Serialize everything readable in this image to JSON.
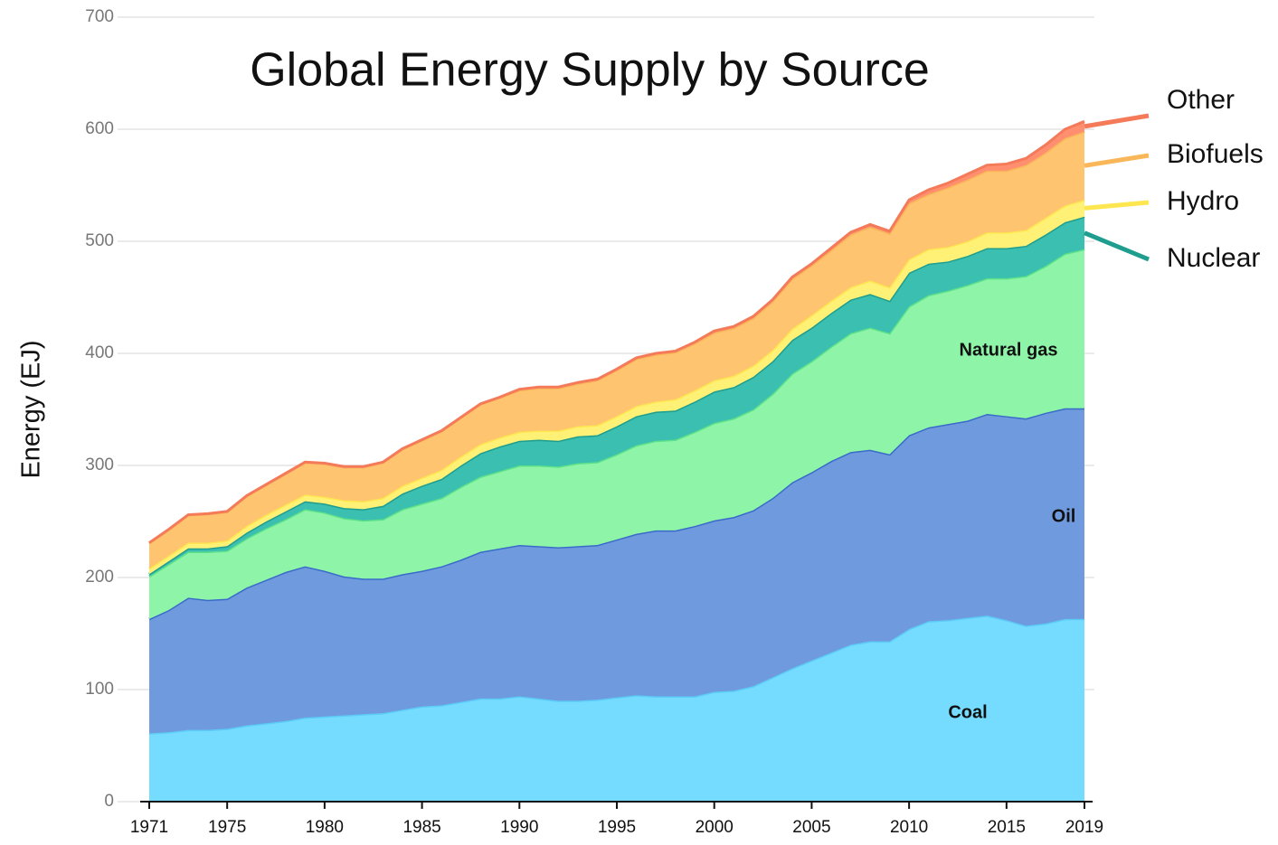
{
  "chart_data": {
    "type": "stacked_area",
    "title": "Global Energy Supply by Source",
    "y_label": "Energy (EJ)",
    "x": [
      1971,
      1972,
      1973,
      1974,
      1975,
      1976,
      1977,
      1978,
      1979,
      1980,
      1981,
      1982,
      1983,
      1984,
      1985,
      1986,
      1987,
      1988,
      1989,
      1990,
      1991,
      1992,
      1993,
      1994,
      1995,
      1996,
      1997,
      1998,
      1999,
      2000,
      2001,
      2002,
      2003,
      2004,
      2005,
      2006,
      2007,
      2008,
      2009,
      2010,
      2011,
      2012,
      2013,
      2014,
      2015,
      2016,
      2017,
      2018,
      2019
    ],
    "xlim": [
      1971,
      2019
    ],
    "xticks": [
      1971,
      1975,
      1980,
      1985,
      1990,
      1995,
      2000,
      2005,
      2010,
      2015,
      2019
    ],
    "ylim": [
      0,
      700
    ],
    "yticks": [
      0,
      100,
      200,
      300,
      400,
      500,
      600,
      700
    ],
    "grid": true,
    "series": [
      {
        "name": "Coal",
        "color": "#76dcff",
        "line": "#5ccbf7",
        "values": [
          61,
          62,
          64,
          64,
          65,
          68,
          70,
          72,
          75,
          76,
          77,
          78,
          79,
          82,
          85,
          86,
          89,
          92,
          92,
          94,
          92,
          90,
          90,
          91,
          93,
          95,
          94,
          94,
          94,
          98,
          99,
          103,
          111,
          119,
          126,
          133,
          140,
          143,
          143,
          154,
          161,
          162,
          164,
          166,
          162,
          157,
          159,
          163,
          163
        ]
      },
      {
        "name": "Oil",
        "color": "#6f9ade",
        "line": "#3a6bc9",
        "values": [
          102,
          109,
          118,
          116,
          116,
          123,
          128,
          133,
          135,
          130,
          124,
          121,
          120,
          121,
          121,
          124,
          127,
          131,
          134,
          135,
          136,
          137,
          138,
          138,
          141,
          144,
          148,
          148,
          152,
          153,
          155,
          157,
          160,
          166,
          168,
          171,
          172,
          171,
          167,
          173,
          173,
          175,
          176,
          180,
          182,
          185,
          188,
          188,
          188
        ]
      },
      {
        "name": "Natural gas",
        "color": "#8ef5a8",
        "line": "#5de08a",
        "values": [
          38,
          41,
          41,
          43,
          43,
          44,
          46,
          47,
          51,
          52,
          52,
          52,
          53,
          58,
          60,
          61,
          65,
          67,
          69,
          71,
          72,
          72,
          74,
          74,
          76,
          79,
          80,
          81,
          84,
          87,
          88,
          90,
          93,
          97,
          99,
          102,
          106,
          109,
          108,
          115,
          118,
          119,
          121,
          121,
          123,
          127,
          131,
          138,
          142
        ]
      },
      {
        "name": "Nuclear",
        "color": "#3bbfb0",
        "line": "#1f9d8e",
        "values": [
          2,
          2.5,
          3,
          3,
          4,
          5,
          6,
          7,
          7,
          8,
          9,
          10,
          12,
          14,
          16,
          17,
          19,
          21,
          22,
          22,
          23,
          23,
          24,
          24,
          25,
          26,
          26,
          26,
          27,
          28,
          28,
          29,
          29,
          30,
          30,
          30,
          30,
          30,
          29,
          30,
          28,
          26,
          26,
          27,
          27,
          27,
          28,
          28,
          29
        ]
      },
      {
        "name": "Hydro",
        "color": "#fff176",
        "line": "#fde64f",
        "values": [
          5,
          5,
          5,
          5,
          5,
          6,
          6,
          6,
          6,
          6,
          7,
          7,
          7,
          7,
          7,
          8,
          8,
          8,
          8,
          8,
          8,
          9,
          9,
          9,
          9,
          9,
          9,
          10,
          10,
          10,
          10,
          10,
          10,
          10,
          11,
          11,
          11,
          12,
          12,
          12,
          13,
          13,
          13,
          14,
          14,
          14,
          15,
          15,
          15
        ]
      },
      {
        "name": "Biofuels",
        "color": "#ffc470",
        "line": "#f9b75a",
        "values": [
          22.5,
          23,
          24.5,
          25.5,
          25.5,
          26.5,
          26.5,
          27.5,
          28.5,
          29.5,
          29.5,
          30.5,
          31.5,
          32.5,
          33.5,
          34.5,
          34.5,
          35.5,
          35.5,
          37,
          38,
          38,
          38,
          40,
          41,
          42,
          42,
          42,
          42,
          42.5,
          42.5,
          42.5,
          43.5,
          44.5,
          44.5,
          45,
          47,
          48,
          48,
          50,
          49,
          53,
          55,
          55,
          55,
          58,
          58,
          60,
          61
        ]
      },
      {
        "name": "Other",
        "color": "#ff8f6f",
        "line": "#f47a5a",
        "values": [
          0.5,
          0.5,
          0.5,
          0.5,
          0.5,
          0.5,
          0.5,
          0.5,
          0.5,
          0.5,
          0.5,
          0.5,
          0.5,
          0.5,
          0.5,
          0.5,
          0.5,
          0.5,
          0.5,
          1,
          1,
          1,
          1,
          1,
          1,
          1,
          1,
          1,
          1,
          1.5,
          1.5,
          1.5,
          1.5,
          1.5,
          1.5,
          2,
          2,
          2,
          2,
          3,
          4,
          4,
          5,
          5,
          6,
          6,
          7,
          8,
          9
        ]
      }
    ]
  }
}
